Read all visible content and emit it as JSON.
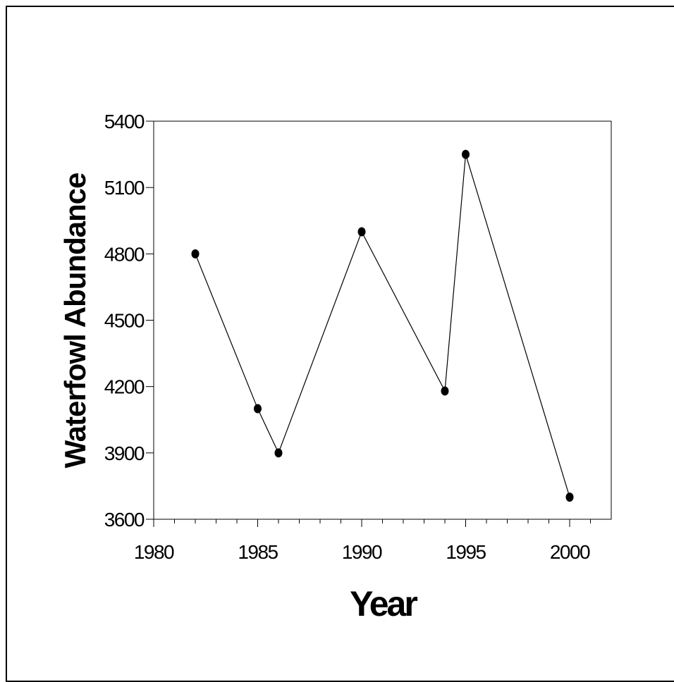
{
  "chart_data": {
    "type": "line",
    "title": "",
    "xlabel": "Year",
    "ylabel": "Waterfowl Abundance",
    "xlim": [
      1980,
      2002
    ],
    "ylim": [
      3600,
      5400
    ],
    "x_ticks": [
      1980,
      1985,
      1990,
      1995,
      2000
    ],
    "y_ticks": [
      3600,
      3900,
      4200,
      4500,
      4800,
      5100,
      5400
    ],
    "x_minor_step": 1,
    "grid": false,
    "legend": "none",
    "series": [
      {
        "x": [
          1982,
          1985,
          1986,
          1990,
          1994,
          1995,
          2000
        ],
        "y": [
          4800,
          4100,
          3900,
          4900,
          4180,
          5250,
          3700
        ],
        "marker": "circle",
        "color": "#000000"
      }
    ]
  }
}
